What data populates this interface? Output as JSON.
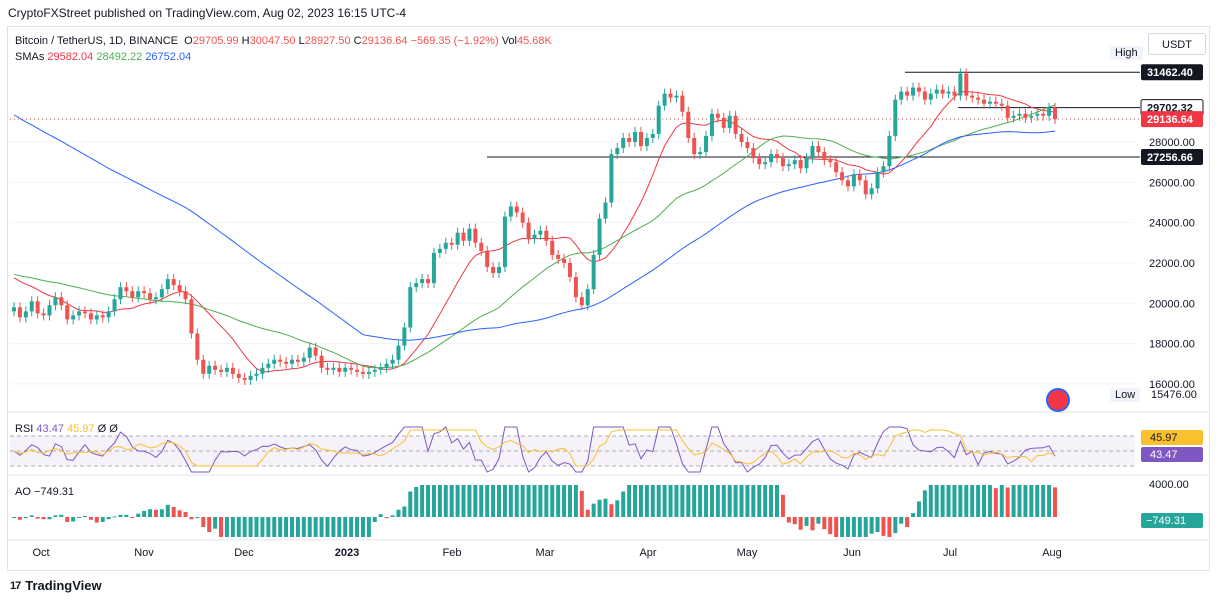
{
  "header": {
    "publisher": "CryptoFXStreet published on TradingView.com, Aug 02, 2023 16:15 UTC-4"
  },
  "legend": {
    "symbol": "Bitcoin / TetherUS, 1D, BINANCE",
    "o_label": "O",
    "o": "29705.99",
    "h_label": "H",
    "h": "30047.50",
    "l_label": "L",
    "l": "28927.50",
    "c_label": "C",
    "c": "29136.64",
    "change": "−569.35 (−1.92%)",
    "vol_label": "Vol",
    "vol": "45.68K",
    "sma_label": "SMAs",
    "sma1": "29582.04",
    "sma2": "28492.22",
    "sma3": "26752.04"
  },
  "currency_button": "USDT",
  "high_low": {
    "high_label": "High",
    "high_value": "31462.40",
    "low_label": "Low",
    "low_value": "15476.00"
  },
  "rsi_legend": {
    "label": "RSI",
    "value1": "43.47",
    "value2": "45.97",
    "value3": "Ø",
    "value4": "Ø"
  },
  "ao_legend": {
    "label": "AO",
    "value": "−749.31"
  },
  "footer": {
    "brand": "TradingView",
    "logo_text": "17"
  },
  "colors": {
    "up": "#26a69a",
    "down": "#ef5350",
    "sma50": "#f23645",
    "sma100": "#4caf50",
    "sma200": "#2962ff",
    "rsi": "#7e57c2",
    "rsi_ma": "#fbc02d"
  },
  "chart_data": {
    "type": "candlestick",
    "title": "Bitcoin / TetherUS, 1D, BINANCE",
    "x_ticks": [
      "Oct",
      "Nov",
      "Dec",
      "2023",
      "Feb",
      "Mar",
      "Apr",
      "May",
      "Jun",
      "Jul",
      "Aug"
    ],
    "y_ticks": [
      "28000.00",
      "26000.00",
      "24000.00",
      "22000.00",
      "20000.00",
      "18000.00",
      "16000.00"
    ],
    "ylim": [
      15000,
      32500
    ],
    "price_tags": [
      {
        "value": "31462.40",
        "style": "dark"
      },
      {
        "value": "29702.32",
        "style": "outline"
      },
      {
        "value": "29136.64",
        "style": "red"
      },
      {
        "value": "27256.66",
        "style": "dark"
      }
    ],
    "horizontal_lines": [
      31462.4,
      29702.32,
      27256.66
    ],
    "candles": [
      [
        19600,
        19800
      ],
      [
        19800,
        19300
      ],
      [
        19300,
        19600
      ],
      [
        19600,
        20100
      ],
      [
        20100,
        19500
      ],
      [
        19500,
        19400
      ],
      [
        19400,
        19900
      ],
      [
        19900,
        20300
      ],
      [
        20300,
        19900
      ],
      [
        19900,
        19200
      ],
      [
        19200,
        19400
      ],
      [
        19400,
        19600
      ],
      [
        19600,
        19500
      ],
      [
        19500,
        19200
      ],
      [
        19200,
        19400
      ],
      [
        19400,
        19300
      ],
      [
        19300,
        19600
      ],
      [
        19600,
        20200
      ],
      [
        20200,
        20800
      ],
      [
        20800,
        20600
      ],
      [
        20600,
        20300
      ],
      [
        20300,
        20600
      ],
      [
        20600,
        20500
      ],
      [
        20500,
        20200
      ],
      [
        20200,
        20300
      ],
      [
        20300,
        20700
      ],
      [
        20700,
        21200
      ],
      [
        21200,
        20900
      ],
      [
        20900,
        20600
      ],
      [
        20600,
        20200
      ],
      [
        20200,
        18500
      ],
      [
        18500,
        17200
      ],
      [
        17200,
        16500
      ],
      [
        16500,
        16900
      ],
      [
        16900,
        16700
      ],
      [
        16700,
        16600
      ],
      [
        16600,
        16800
      ],
      [
        16800,
        16500
      ],
      [
        16500,
        16300
      ],
      [
        16300,
        16200
      ],
      [
        16200,
        16400
      ],
      [
        16400,
        16500
      ],
      [
        16500,
        16800
      ],
      [
        16800,
        17000
      ],
      [
        17000,
        17200
      ],
      [
        17200,
        17100
      ],
      [
        17100,
        17000
      ],
      [
        17000,
        17200
      ],
      [
        17200,
        17100
      ],
      [
        17100,
        17300
      ],
      [
        17300,
        17800
      ],
      [
        17800,
        17400
      ],
      [
        17400,
        16800
      ],
      [
        16800,
        16700
      ],
      [
        16700,
        16800
      ],
      [
        16800,
        16600
      ],
      [
        16600,
        16800
      ],
      [
        16800,
        16700
      ],
      [
        16700,
        16600
      ],
      [
        16600,
        16500
      ],
      [
        16500,
        16600
      ],
      [
        16600,
        16700
      ],
      [
        16700,
        16800
      ],
      [
        16800,
        17000
      ],
      [
        17000,
        17200
      ],
      [
        17200,
        17900
      ],
      [
        17900,
        18800
      ],
      [
        18800,
        20800
      ],
      [
        20800,
        21000
      ],
      [
        21000,
        21200
      ],
      [
        21200,
        21000
      ],
      [
        21000,
        22500
      ],
      [
        22500,
        22700
      ],
      [
        22700,
        23000
      ],
      [
        23000,
        22900
      ],
      [
        22900,
        23500
      ],
      [
        23500,
        23100
      ],
      [
        23100,
        23700
      ],
      [
        23700,
        23000
      ],
      [
        23000,
        22600
      ],
      [
        22600,
        21800
      ],
      [
        21800,
        21500
      ],
      [
        21500,
        21800
      ],
      [
        21800,
        24300
      ],
      [
        24300,
        24800
      ],
      [
        24800,
        24500
      ],
      [
        24500,
        24000
      ],
      [
        24000,
        23200
      ],
      [
        23200,
        23400
      ],
      [
        23400,
        23600
      ],
      [
        23600,
        23100
      ],
      [
        23100,
        22400
      ],
      [
        22400,
        22200
      ],
      [
        22200,
        22000
      ],
      [
        22000,
        21300
      ],
      [
        21300,
        20300
      ],
      [
        20300,
        19900
      ],
      [
        19900,
        20700
      ],
      [
        20700,
        22400
      ],
      [
        22400,
        24200
      ],
      [
        24200,
        25000
      ],
      [
        25000,
        27400
      ],
      [
        27400,
        27700
      ],
      [
        27700,
        28200
      ],
      [
        28200,
        28000
      ],
      [
        28000,
        28500
      ],
      [
        28500,
        27800
      ],
      [
        27800,
        28200
      ],
      [
        28200,
        28400
      ],
      [
        28400,
        29800
      ],
      [
        29800,
        30400
      ],
      [
        30400,
        30200
      ],
      [
        30200,
        30300
      ],
      [
        30300,
        29500
      ],
      [
        29500,
        28200
      ],
      [
        28200,
        27400
      ],
      [
        27400,
        27500
      ],
      [
        27500,
        28300
      ],
      [
        28300,
        29400
      ],
      [
        29400,
        29200
      ],
      [
        29200,
        28700
      ],
      [
        28700,
        29300
      ],
      [
        29300,
        28400
      ],
      [
        28400,
        28000
      ],
      [
        28000,
        27700
      ],
      [
        27700,
        27200
      ],
      [
        27200,
        26900
      ],
      [
        26900,
        27000
      ],
      [
        27000,
        27400
      ],
      [
        27400,
        27200
      ],
      [
        27200,
        26800
      ],
      [
        26800,
        26900
      ],
      [
        26900,
        27100
      ],
      [
        27100,
        26700
      ],
      [
        26700,
        27200
      ],
      [
        27200,
        27800
      ],
      [
        27800,
        27500
      ],
      [
        27500,
        27100
      ],
      [
        27100,
        27000
      ],
      [
        27000,
        26500
      ],
      [
        26500,
        26100
      ],
      [
        26100,
        25800
      ],
      [
        25800,
        26400
      ],
      [
        26400,
        26100
      ],
      [
        26100,
        25400
      ],
      [
        25400,
        25700
      ],
      [
        25700,
        26500
      ],
      [
        26500,
        26800
      ],
      [
        26800,
        28300
      ],
      [
        28300,
        30100
      ],
      [
        30100,
        30500
      ],
      [
        30500,
        30300
      ],
      [
        30300,
        30700
      ],
      [
        30700,
        30500
      ],
      [
        30500,
        30100
      ],
      [
        30100,
        30400
      ],
      [
        30400,
        30600
      ],
      [
        30600,
        30400
      ],
      [
        30400,
        30500
      ],
      [
        30500,
        30300
      ],
      [
        30300,
        31400
      ],
      [
        31400,
        30300
      ],
      [
        30300,
        30200
      ],
      [
        30200,
        30100
      ],
      [
        30100,
        29900
      ],
      [
        29900,
        30000
      ],
      [
        30000,
        29900
      ],
      [
        29900,
        29800
      ],
      [
        29800,
        29200
      ],
      [
        29200,
        29300
      ],
      [
        29300,
        29400
      ],
      [
        29400,
        29200
      ],
      [
        29200,
        29300
      ],
      [
        29300,
        29400
      ],
      [
        29400,
        29300
      ],
      [
        29300,
        29700
      ],
      [
        29700,
        29136
      ]
    ],
    "sma_50_label": "29582.04",
    "sma_100_label": "28492.22",
    "sma_200_label": "26752.04",
    "rsi": {
      "value": "43.47",
      "ma": "45.97",
      "levels": [
        70,
        50,
        30
      ]
    },
    "ao": {
      "value": "-749.31",
      "tick": "4000.00"
    }
  }
}
